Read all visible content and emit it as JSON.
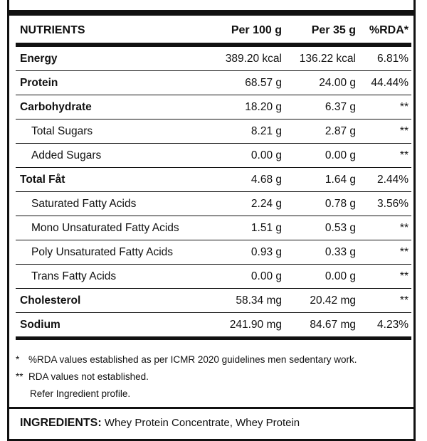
{
  "table": {
    "headers": {
      "name": "NUTRIENTS",
      "per100": "Per 100 g",
      "per35": "Per 35 g",
      "rda": "%RDA*"
    },
    "rows": [
      {
        "name": "Energy",
        "per100": "389.20 kcal",
        "per35": "136.22 kcal",
        "rda": "6.81%"
      },
      {
        "name": "Protein",
        "per100": "68.57 g",
        "per35": "24.00 g",
        "rda": "44.44%"
      },
      {
        "name": "Carbohydrate",
        "per100": "18.20 g",
        "per35": "6.37 g",
        "rda": "**"
      },
      {
        "name": "Total Sugars",
        "per100": "8.21 g",
        "per35": "2.87 g",
        "rda": "**"
      },
      {
        "name": "Added Sugars",
        "per100": "0.00 g",
        "per35": "0.00 g",
        "rda": "**"
      },
      {
        "name": "Total Fåt",
        "per100": "4.68 g",
        "per35": "1.64 g",
        "rda": "2.44%"
      },
      {
        "name": "Saturated Fatty Acids",
        "per100": "2.24 g",
        "per35": "0.78 g",
        "rda": "3.56%"
      },
      {
        "name": "Mono Unsaturated Fatty Acids",
        "per100": "1.51 g",
        "per35": "0.53 g",
        "rda": "**"
      },
      {
        "name": "Poly Unsaturated Fatty Acids",
        "per100": "0.93 g",
        "per35": "0.33 g",
        "rda": "**"
      },
      {
        "name": "Trans Fatty Acids",
        "per100": "0.00 g",
        "per35": "0.00 g",
        "rda": "**"
      },
      {
        "name": "Cholesterol",
        "per100": "58.34 mg",
        "per35": "20.42 mg",
        "rda": "**"
      },
      {
        "name": "Sodium",
        "per100": "241.90 mg",
        "per35": "84.67 mg",
        "rda": "4.23%"
      }
    ]
  },
  "notes": {
    "note1_mark": "*",
    "note1": "%RDA values established as per ICMR 2020 guidelines men sedentary work.",
    "note2_mark": "**",
    "note2": "RDA values not established.",
    "note3": "Refer Ingredient profile."
  },
  "ingredients": {
    "label": "INGREDIENTS:",
    "text": "Whey Protein Concentrate, Whey Protein"
  }
}
